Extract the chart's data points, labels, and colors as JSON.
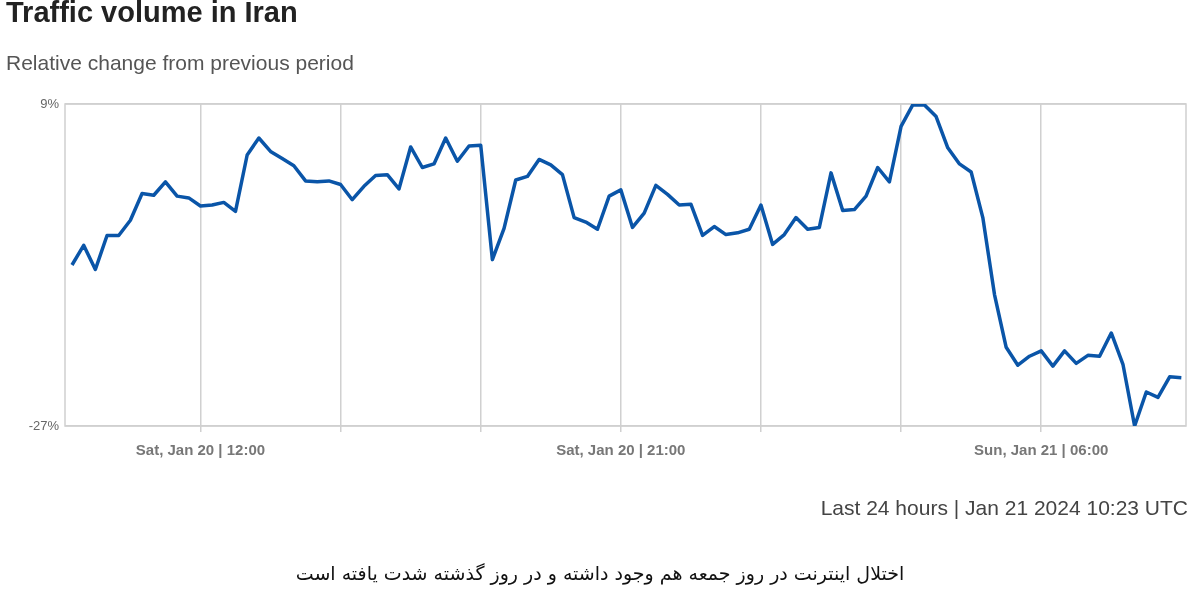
{
  "chart_data": {
    "type": "line",
    "title": "Traffic volume in Iran",
    "subtitle": "Relative change from previous period",
    "x": [
      "2024-01-20T09:15",
      "2024-01-20T09:30",
      "2024-01-20T09:45",
      "2024-01-20T10:00",
      "2024-01-20T10:15",
      "2024-01-20T10:30",
      "2024-01-20T10:45",
      "2024-01-20T11:00",
      "2024-01-20T11:15",
      "2024-01-20T11:30",
      "2024-01-20T11:45",
      "2024-01-20T12:00",
      "2024-01-20T12:15",
      "2024-01-20T12:30",
      "2024-01-20T12:45",
      "2024-01-20T13:00",
      "2024-01-20T13:15",
      "2024-01-20T13:30",
      "2024-01-20T13:45",
      "2024-01-20T14:00",
      "2024-01-20T14:15",
      "2024-01-20T14:30",
      "2024-01-20T14:45",
      "2024-01-20T15:00",
      "2024-01-20T15:15",
      "2024-01-20T15:30",
      "2024-01-20T15:45",
      "2024-01-20T16:00",
      "2024-01-20T16:15",
      "2024-01-20T16:30",
      "2024-01-20T16:45",
      "2024-01-20T17:00",
      "2024-01-20T17:15",
      "2024-01-20T17:30",
      "2024-01-20T17:45",
      "2024-01-20T18:00",
      "2024-01-20T18:15",
      "2024-01-20T18:30",
      "2024-01-20T18:45",
      "2024-01-20T19:00",
      "2024-01-20T19:15",
      "2024-01-20T19:30",
      "2024-01-20T19:45",
      "2024-01-20T20:00",
      "2024-01-20T20:15",
      "2024-01-20T20:30",
      "2024-01-20T20:45",
      "2024-01-20T21:00",
      "2024-01-20T21:15",
      "2024-01-20T21:30",
      "2024-01-20T21:45",
      "2024-01-20T22:00",
      "2024-01-20T22:15",
      "2024-01-20T22:30",
      "2024-01-20T22:45",
      "2024-01-20T23:00",
      "2024-01-20T23:15",
      "2024-01-20T23:30",
      "2024-01-20T23:45",
      "2024-01-21T00:00",
      "2024-01-21T00:15",
      "2024-01-21T00:30",
      "2024-01-21T00:45",
      "2024-01-21T01:00",
      "2024-01-21T01:15",
      "2024-01-21T01:30",
      "2024-01-21T01:45",
      "2024-01-21T02:00",
      "2024-01-21T02:15",
      "2024-01-21T02:30",
      "2024-01-21T02:45",
      "2024-01-21T03:00",
      "2024-01-21T03:15",
      "2024-01-21T03:30",
      "2024-01-21T03:45",
      "2024-01-21T04:00",
      "2024-01-21T04:15",
      "2024-01-21T04:30",
      "2024-01-21T04:45",
      "2024-01-21T05:00",
      "2024-01-21T05:15",
      "2024-01-21T05:30",
      "2024-01-21T05:45",
      "2024-01-21T06:00",
      "2024-01-21T06:15",
      "2024-01-21T06:30",
      "2024-01-21T06:45",
      "2024-01-21T07:00",
      "2024-01-21T07:15",
      "2024-01-21T07:30",
      "2024-01-21T07:45",
      "2024-01-21T08:00",
      "2024-01-21T08:15",
      "2024-01-21T08:30",
      "2024-01-21T08:45",
      "2024-01-21T09:00"
    ],
    "series": [
      {
        "color": "#0a55a8",
        "values": [
          -9.0,
          -6.8,
          -9.5,
          -5.7,
          -5.7,
          -4.0,
          -1.0,
          -1.2,
          0.3,
          -1.3,
          -1.5,
          -2.4,
          -2.3,
          -2.0,
          -3.0,
          3.3,
          5.2,
          3.7,
          2.9,
          2.1,
          0.4,
          0.3,
          0.4,
          0.0,
          -1.7,
          -0.2,
          1.0,
          1.1,
          -0.5,
          4.2,
          1.9,
          2.3,
          5.2,
          2.6,
          4.3,
          4.4,
          -8.4,
          -4.9,
          0.5,
          0.9,
          2.8,
          2.2,
          1.1,
          -3.7,
          -4.2,
          -5.0,
          -1.3,
          -0.6,
          -4.8,
          -3.2,
          -0.1,
          -1.1,
          -2.3,
          -2.2,
          -5.7,
          -4.7,
          -5.6,
          -5.4,
          -5.0,
          -2.3,
          -6.7,
          -5.6,
          -3.7,
          -5.0,
          -4.8,
          1.3,
          -2.9,
          -2.8,
          -1.3,
          1.9,
          0.3,
          6.5,
          8.9,
          8.9,
          7.6,
          4.1,
          2.3,
          1.4,
          -3.7,
          -12.3,
          -18.2,
          -20.2,
          -19.2,
          -18.6,
          -20.3,
          -18.6,
          -20.0,
          -19.1,
          -19.2,
          -16.6,
          -20.1,
          -27.0,
          -23.2,
          -23.8,
          -21.5,
          -21.6
        ]
      }
    ],
    "xlim": [
      "2024-01-20T09:06",
      "2024-01-21T09:06"
    ],
    "ylim": [
      -27,
      9
    ],
    "xticks": [
      {
        "value": "2024-01-20T12:00",
        "label": "Sat, Jan 20 | 12:00"
      },
      {
        "value": "2024-01-20T15:00",
        "label": null
      },
      {
        "value": "2024-01-20T18:00",
        "label": null
      },
      {
        "value": "2024-01-20T21:00",
        "label": "Sat, Jan 20 | 21:00"
      },
      {
        "value": "2024-01-21T00:00",
        "label": null
      },
      {
        "value": "2024-01-21T03:00",
        "label": null
      },
      {
        "value": "2024-01-21T06:00",
        "label": "Sun, Jan 21 | 06:00"
      }
    ],
    "yticks": [
      {
        "value": 9,
        "label": "9%"
      },
      {
        "value": -27,
        "label": "-27%"
      }
    ],
    "grid": true,
    "annotations": [
      "Last 24 hours | Jan 21 2024 10:23 UTC",
      "اختلال اینترنت در روز جمعه هم وجود داشته و در روز گذشته شدت یافته است"
    ]
  }
}
